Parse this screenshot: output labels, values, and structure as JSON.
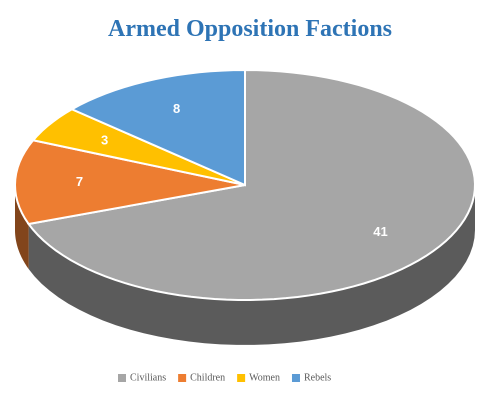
{
  "chart_data": {
    "type": "pie",
    "title": "Armed Opposition Factions",
    "categories": [
      "Civilians",
      "Children",
      "Women",
      "Rebels"
    ],
    "values": [
      41,
      7,
      3,
      8
    ],
    "colors": [
      "#a6a6a6",
      "#ed7d31",
      "#ffc000",
      "#5b9bd5"
    ],
    "legend": "bottom"
  }
}
